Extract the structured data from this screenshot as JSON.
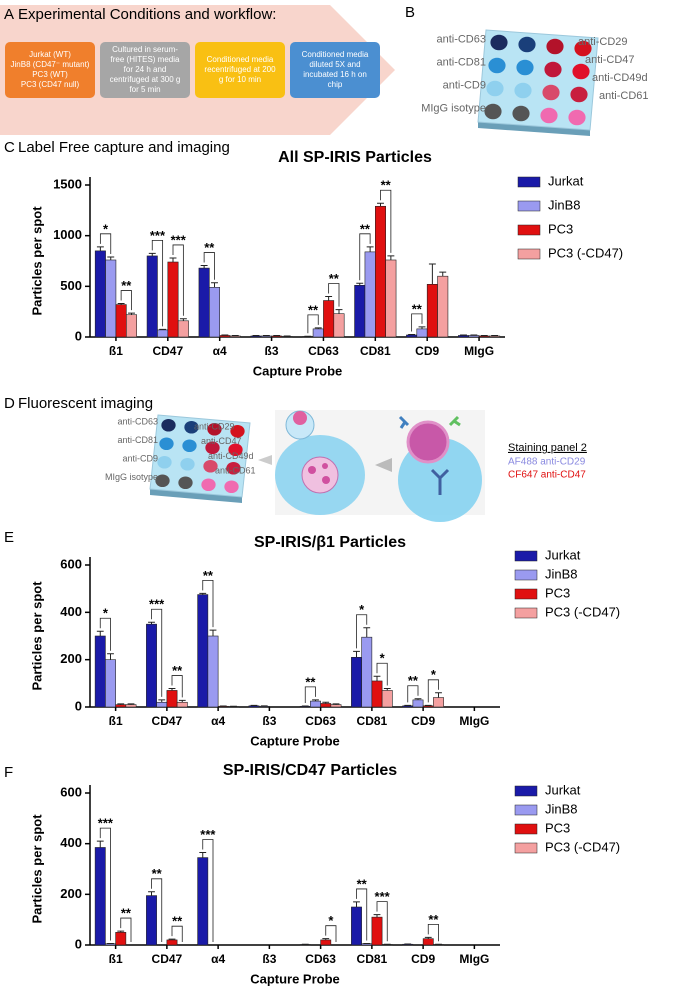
{
  "panel_a": {
    "label": "A",
    "title": "Experimental Conditions and workflow:",
    "boxes": [
      {
        "lines": [
          "Jurkat (WT)",
          "JinB8 (CD47⁻ mutant)",
          "PC3 (WT)",
          "PC3 (CD47 null)"
        ]
      },
      {
        "lines": [
          "Cultured in serum-",
          "free (HITES) media",
          "for 24 h and",
          "centrifuged at 300 g",
          "for 5 min"
        ]
      },
      {
        "lines": [
          "Conditioned media",
          "recentrifuged at 200",
          "g for 10 min"
        ]
      },
      {
        "lines": [
          "Conditioned media",
          "diluted 5X and",
          "incubated 16 h on",
          "chip"
        ]
      }
    ]
  },
  "panel_b": {
    "label": "B",
    "left_labels": [
      "anti-CD63",
      "anti-CD81",
      "anti-CD9",
      "MIgG isotype"
    ],
    "right_labels": [
      "anti-CD29",
      "anti-CD47",
      "anti-CD49d",
      "anti-CD61"
    ]
  },
  "panel_c": {
    "label": "C",
    "title": "Label Free capture and imaging"
  },
  "panel_d": {
    "label": "D",
    "title": "Fluorescent imaging",
    "left_labels": [
      "anti-CD63",
      "anti-CD81",
      "anti-CD9",
      "MIgG isotype"
    ],
    "right_labels": [
      "anti-CD29",
      "anti-CD47",
      "anti-CD49d",
      "anti-CD61"
    ],
    "staining_title": "Staining panel 2",
    "stains": [
      {
        "text": "AF488 anti-CD29",
        "color": "#8a8ae0"
      },
      {
        "text": "CF647 anti-CD47",
        "color": "#e01010"
      }
    ]
  },
  "panel_e": {
    "label": "E"
  },
  "panel_f": {
    "label": "F"
  },
  "chart_data": [
    {
      "type": "bar",
      "title": "All SP-IRIS Particles",
      "x_label": "Capture Probe",
      "y_label": "Particles per spot",
      "categories": [
        "ß1",
        "CD47",
        "α4",
        "ß3",
        "CD63",
        "CD81",
        "CD9",
        "MIgG"
      ],
      "ylim": [
        0,
        1500
      ],
      "yticks": [
        0,
        500,
        1000,
        1500
      ],
      "series": [
        {
          "name": "Jurkat",
          "color": "#1a1aa8",
          "values": [
            850,
            800,
            680,
            10,
            5,
            510,
            20,
            15
          ],
          "errors": [
            40,
            25,
            25,
            5,
            3,
            20,
            5,
            5
          ]
        },
        {
          "name": "JinB8",
          "color": "#9a9af0",
          "values": [
            760,
            70,
            490,
            10,
            80,
            840,
            80,
            15
          ],
          "errors": [
            30,
            5,
            45,
            5,
            10,
            50,
            20,
            5
          ]
        },
        {
          "name": "PC3",
          "color": "#e01010",
          "values": [
            320,
            740,
            15,
            10,
            360,
            1290,
            520,
            10
          ],
          "errors": [
            10,
            40,
            5,
            5,
            40,
            30,
            200,
            5
          ]
        },
        {
          "name": "PC3 (-CD47)",
          "color": "#f4a0a0",
          "values": [
            220,
            160,
            10,
            5,
            230,
            760,
            600,
            10
          ],
          "errors": [
            15,
            20,
            5,
            5,
            40,
            40,
            40,
            5
          ]
        }
      ],
      "annotations": [
        {
          "text": "*",
          "category": 0,
          "series": [
            0,
            1
          ]
        },
        {
          "text": "**",
          "category": 0,
          "series": [
            2,
            3
          ]
        },
        {
          "text": "***",
          "category": 1,
          "series": [
            0,
            1
          ]
        },
        {
          "text": "***",
          "category": 1,
          "series": [
            2,
            3
          ]
        },
        {
          "text": "**",
          "category": 2,
          "series": [
            0,
            1
          ]
        },
        {
          "text": "**",
          "category": 4,
          "series": [
            0,
            1
          ]
        },
        {
          "text": "**",
          "category": 4,
          "series": [
            2,
            3
          ]
        },
        {
          "text": "**",
          "category": 5,
          "series": [
            0,
            1
          ]
        },
        {
          "text": "**",
          "category": 5,
          "series": [
            2,
            3
          ]
        },
        {
          "text": "**",
          "category": 6,
          "series": [
            0,
            1
          ]
        }
      ]
    },
    {
      "type": "bar",
      "title": "SP-IRIS/β1 Particles",
      "x_label": "Capture Probe",
      "y_label": "Particles per spot",
      "categories": [
        "ß1",
        "CD47",
        "α4",
        "ß3",
        "CD63",
        "CD81",
        "CD9",
        "MIgG"
      ],
      "ylim": [
        0,
        600
      ],
      "yticks": [
        0,
        200,
        400,
        600
      ],
      "series": [
        {
          "name": "Jurkat",
          "color": "#1a1aa8",
          "values": [
            300,
            350,
            475,
            5,
            3,
            210,
            5,
            0
          ],
          "errors": [
            20,
            8,
            5,
            2,
            1,
            25,
            2,
            0
          ]
        },
        {
          "name": "JinB8",
          "color": "#9a9af0",
          "values": [
            200,
            20,
            300,
            3,
            25,
            295,
            30,
            0
          ],
          "errors": [
            25,
            10,
            25,
            2,
            5,
            40,
            5,
            0
          ]
        },
        {
          "name": "PC3",
          "color": "#e01010",
          "values": [
            10,
            70,
            3,
            0,
            15,
            110,
            5,
            0
          ],
          "errors": [
            3,
            8,
            1,
            0,
            5,
            20,
            2,
            0
          ]
        },
        {
          "name": "PC3 (-CD47)",
          "color": "#f4a0a0",
          "values": [
            10,
            20,
            2,
            0,
            10,
            70,
            40,
            0
          ],
          "errors": [
            3,
            8,
            1,
            0,
            3,
            8,
            20,
            0
          ]
        }
      ],
      "annotations": [
        {
          "text": "*",
          "category": 0,
          "series": [
            0,
            1
          ]
        },
        {
          "text": "***",
          "category": 1,
          "series": [
            0,
            1
          ]
        },
        {
          "text": "**",
          "category": 1,
          "series": [
            2,
            3
          ]
        },
        {
          "text": "**",
          "category": 2,
          "series": [
            0,
            1
          ]
        },
        {
          "text": "**",
          "category": 4,
          "series": [
            0,
            1
          ]
        },
        {
          "text": "*",
          "category": 5,
          "series": [
            0,
            1
          ]
        },
        {
          "text": "*",
          "category": 5,
          "series": [
            2,
            3
          ]
        },
        {
          "text": "**",
          "category": 6,
          "series": [
            0,
            1
          ]
        },
        {
          "text": "*",
          "category": 6,
          "series": [
            2,
            3
          ]
        }
      ]
    },
    {
      "type": "bar",
      "title": "SP-IRIS/CD47 Particles",
      "x_label": "Capture Probe",
      "y_label": "Particles per spot",
      "categories": [
        "ß1",
        "CD47",
        "α4",
        "ß3",
        "CD63",
        "CD81",
        "CD9",
        "MIgG"
      ],
      "ylim": [
        0,
        600
      ],
      "yticks": [
        0,
        200,
        400,
        600
      ],
      "series": [
        {
          "name": "Jurkat",
          "color": "#1a1aa8",
          "values": [
            385,
            195,
            345,
            0,
            2,
            150,
            3,
            0
          ],
          "errors": [
            25,
            15,
            20,
            0,
            1,
            20,
            1,
            0
          ]
        },
        {
          "name": "JinB8",
          "color": "#9a9af0",
          "values": [
            5,
            0,
            0,
            0,
            0,
            5,
            0,
            0
          ],
          "errors": [
            1,
            0,
            0,
            0,
            0,
            1,
            0,
            0
          ]
        },
        {
          "name": "PC3",
          "color": "#e01010",
          "values": [
            50,
            20,
            0,
            0,
            20,
            110,
            25,
            0
          ],
          "errors": [
            5,
            3,
            0,
            0,
            5,
            10,
            5,
            0
          ]
        },
        {
          "name": "PC3 (-CD47)",
          "color": "#f4a0a0",
          "values": [
            0,
            0,
            0,
            0,
            0,
            2,
            2,
            0
          ],
          "errors": [
            0,
            0,
            0,
            0,
            0,
            1,
            1,
            0
          ]
        }
      ],
      "annotations": [
        {
          "text": "***",
          "category": 0,
          "series": [
            0,
            1
          ]
        },
        {
          "text": "**",
          "category": 0,
          "series": [
            2,
            3
          ]
        },
        {
          "text": "**",
          "category": 1,
          "series": [
            0,
            1
          ]
        },
        {
          "text": "**",
          "category": 1,
          "series": [
            2,
            3
          ]
        },
        {
          "text": "***",
          "category": 2,
          "series": [
            0,
            1
          ]
        },
        {
          "text": "*",
          "category": 4,
          "series": [
            2,
            3
          ]
        },
        {
          "text": "**",
          "category": 5,
          "series": [
            0,
            1
          ]
        },
        {
          "text": "***",
          "category": 5,
          "series": [
            2,
            3
          ]
        },
        {
          "text": "**",
          "category": 6,
          "series": [
            2,
            3
          ]
        }
      ]
    }
  ]
}
